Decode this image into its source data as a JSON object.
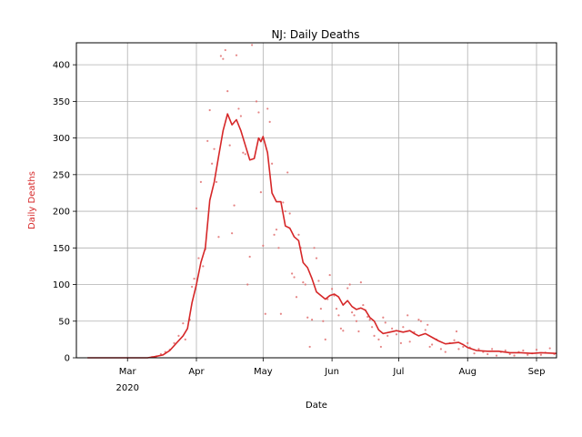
{
  "chart_data": {
    "type": "line",
    "title": "NJ: Daily Deaths",
    "xlabel": "Date",
    "ylabel": "Daily Deaths",
    "grid": true,
    "legend": "none",
    "xlim": [
      "2020-02-07",
      "2020-09-10"
    ],
    "ylim": [
      0,
      430
    ],
    "x_ticks": [
      {
        "date": "2020-03-01",
        "label": "Mar",
        "sublabel": "2020"
      },
      {
        "date": "2020-04-01",
        "label": "Apr",
        "sublabel": ""
      },
      {
        "date": "2020-05-01",
        "label": "May",
        "sublabel": ""
      },
      {
        "date": "2020-06-01",
        "label": "Jun",
        "sublabel": ""
      },
      {
        "date": "2020-07-01",
        "label": "Jul",
        "sublabel": ""
      },
      {
        "date": "2020-08-01",
        "label": "Aug",
        "sublabel": ""
      },
      {
        "date": "2020-09-01",
        "label": "Sep",
        "sublabel": ""
      }
    ],
    "y_ticks": [
      0,
      50,
      100,
      150,
      200,
      250,
      300,
      350,
      400
    ],
    "colors": {
      "line": "#d62728",
      "points": "#e07070",
      "ylabel": "#d62728",
      "grid": "#b0b0b0"
    },
    "series": [
      {
        "kind": "line",
        "data": [
          [
            "2020-02-12",
            0
          ],
          [
            "2020-02-28",
            0
          ],
          [
            "2020-03-10",
            0
          ],
          [
            "2020-03-14",
            2
          ],
          [
            "2020-03-17",
            4
          ],
          [
            "2020-03-20",
            10
          ],
          [
            "2020-03-23",
            20
          ],
          [
            "2020-03-26",
            30
          ],
          [
            "2020-03-28",
            40
          ],
          [
            "2020-03-30",
            75
          ],
          [
            "2020-04-01",
            100
          ],
          [
            "2020-04-03",
            130
          ],
          [
            "2020-04-05",
            150
          ],
          [
            "2020-04-07",
            215
          ],
          [
            "2020-04-09",
            240
          ],
          [
            "2020-04-11",
            275
          ],
          [
            "2020-04-13",
            310
          ],
          [
            "2020-04-15",
            333
          ],
          [
            "2020-04-17",
            318
          ],
          [
            "2020-04-19",
            325
          ],
          [
            "2020-04-21",
            310
          ],
          [
            "2020-04-23",
            290
          ],
          [
            "2020-04-25",
            270
          ],
          [
            "2020-04-27",
            272
          ],
          [
            "2020-04-29",
            300
          ],
          [
            "2020-04-30",
            295
          ],
          [
            "2020-05-01",
            302
          ],
          [
            "2020-05-03",
            280
          ],
          [
            "2020-05-05",
            225
          ],
          [
            "2020-05-07",
            213
          ],
          [
            "2020-05-09",
            213
          ],
          [
            "2020-05-11",
            180
          ],
          [
            "2020-05-13",
            177
          ],
          [
            "2020-05-15",
            165
          ],
          [
            "2020-05-17",
            160
          ],
          [
            "2020-05-19",
            130
          ],
          [
            "2020-05-21",
            123
          ],
          [
            "2020-05-23",
            108
          ],
          [
            "2020-05-25",
            90
          ],
          [
            "2020-05-27",
            85
          ],
          [
            "2020-05-29",
            80
          ],
          [
            "2020-05-31",
            85
          ],
          [
            "2020-06-02",
            87
          ],
          [
            "2020-06-04",
            83
          ],
          [
            "2020-06-06",
            72
          ],
          [
            "2020-06-08",
            78
          ],
          [
            "2020-06-10",
            70
          ],
          [
            "2020-06-12",
            66
          ],
          [
            "2020-06-14",
            68
          ],
          [
            "2020-06-16",
            65
          ],
          [
            "2020-06-18",
            55
          ],
          [
            "2020-06-20",
            50
          ],
          [
            "2020-06-22",
            38
          ],
          [
            "2020-06-24",
            33
          ],
          [
            "2020-06-27",
            35
          ],
          [
            "2020-06-30",
            37
          ],
          [
            "2020-07-03",
            35
          ],
          [
            "2020-07-06",
            37
          ],
          [
            "2020-07-08",
            33
          ],
          [
            "2020-07-10",
            30
          ],
          [
            "2020-07-13",
            33
          ],
          [
            "2020-07-16",
            28
          ],
          [
            "2020-07-19",
            23
          ],
          [
            "2020-07-22",
            19
          ],
          [
            "2020-07-25",
            20
          ],
          [
            "2020-07-28",
            21
          ],
          [
            "2020-07-30",
            18
          ],
          [
            "2020-08-01",
            14
          ],
          [
            "2020-08-05",
            10
          ],
          [
            "2020-08-10",
            9
          ],
          [
            "2020-08-15",
            9
          ],
          [
            "2020-08-20",
            7
          ],
          [
            "2020-08-25",
            7
          ],
          [
            "2020-08-30",
            6
          ],
          [
            "2020-09-03",
            7
          ],
          [
            "2020-09-10",
            6
          ]
        ]
      },
      {
        "kind": "scatter",
        "data": [
          [
            "2020-03-12",
            1
          ],
          [
            "2020-03-14",
            2
          ],
          [
            "2020-03-16",
            5
          ],
          [
            "2020-03-18",
            8
          ],
          [
            "2020-03-20",
            11
          ],
          [
            "2020-03-22",
            20
          ],
          [
            "2020-03-24",
            30
          ],
          [
            "2020-03-26",
            47
          ],
          [
            "2020-03-27",
            25
          ],
          [
            "2020-03-29",
            52
          ],
          [
            "2020-03-30",
            97
          ],
          [
            "2020-03-31",
            108
          ],
          [
            "2020-04-01",
            204
          ],
          [
            "2020-04-02",
            136
          ],
          [
            "2020-04-03",
            240
          ],
          [
            "2020-04-04",
            125
          ],
          [
            "2020-04-05",
            148
          ],
          [
            "2020-04-06",
            296
          ],
          [
            "2020-04-07",
            338
          ],
          [
            "2020-04-08",
            265
          ],
          [
            "2020-04-09",
            285
          ],
          [
            "2020-04-10",
            240
          ],
          [
            "2020-04-11",
            165
          ],
          [
            "2020-04-12",
            412
          ],
          [
            "2020-04-13",
            408
          ],
          [
            "2020-04-14",
            420
          ],
          [
            "2020-04-15",
            364
          ],
          [
            "2020-04-16",
            290
          ],
          [
            "2020-04-17",
            170
          ],
          [
            "2020-04-18",
            208
          ],
          [
            "2020-04-19",
            413
          ],
          [
            "2020-04-20",
            340
          ],
          [
            "2020-04-21",
            330
          ],
          [
            "2020-04-22",
            280
          ],
          [
            "2020-04-23",
            278
          ],
          [
            "2020-04-24",
            100
          ],
          [
            "2020-04-25",
            138
          ],
          [
            "2020-04-26",
            427
          ],
          [
            "2020-04-28",
            350
          ],
          [
            "2020-04-29",
            335
          ],
          [
            "2020-04-30",
            226
          ],
          [
            "2020-05-01",
            153
          ],
          [
            "2020-05-02",
            60
          ],
          [
            "2020-05-03",
            340
          ],
          [
            "2020-05-04",
            322
          ],
          [
            "2020-05-05",
            265
          ],
          [
            "2020-05-06",
            168
          ],
          [
            "2020-05-07",
            175
          ],
          [
            "2020-05-08",
            150
          ],
          [
            "2020-05-09",
            60
          ],
          [
            "2020-05-10",
            212
          ],
          [
            "2020-05-11",
            200
          ],
          [
            "2020-05-12",
            253
          ],
          [
            "2020-05-13",
            197
          ],
          [
            "2020-05-14",
            115
          ],
          [
            "2020-05-15",
            110
          ],
          [
            "2020-05-16",
            83
          ],
          [
            "2020-05-17",
            168
          ],
          [
            "2020-05-18",
            150
          ],
          [
            "2020-05-19",
            103
          ],
          [
            "2020-05-20",
            100
          ],
          [
            "2020-05-21",
            55
          ],
          [
            "2020-05-22",
            15
          ],
          [
            "2020-05-23",
            52
          ],
          [
            "2020-05-24",
            150
          ],
          [
            "2020-05-25",
            136
          ],
          [
            "2020-05-26",
            105
          ],
          [
            "2020-05-27",
            67
          ],
          [
            "2020-05-28",
            50
          ],
          [
            "2020-05-29",
            25
          ],
          [
            "2020-05-30",
            80
          ],
          [
            "2020-05-31",
            113
          ],
          [
            "2020-06-01",
            94
          ],
          [
            "2020-06-02",
            85
          ],
          [
            "2020-06-03",
            67
          ],
          [
            "2020-06-04",
            58
          ],
          [
            "2020-06-05",
            40
          ],
          [
            "2020-06-06",
            37
          ],
          [
            "2020-06-08",
            95
          ],
          [
            "2020-06-09",
            100
          ],
          [
            "2020-06-10",
            62
          ],
          [
            "2020-06-11",
            58
          ],
          [
            "2020-06-12",
            50
          ],
          [
            "2020-06-13",
            36
          ],
          [
            "2020-06-14",
            103
          ],
          [
            "2020-06-15",
            72
          ],
          [
            "2020-06-16",
            65
          ],
          [
            "2020-06-17",
            56
          ],
          [
            "2020-06-18",
            52
          ],
          [
            "2020-06-19",
            42
          ],
          [
            "2020-06-20",
            30
          ],
          [
            "2020-06-22",
            25
          ],
          [
            "2020-06-23",
            15
          ],
          [
            "2020-06-24",
            55
          ],
          [
            "2020-06-25",
            48
          ],
          [
            "2020-06-26",
            30
          ],
          [
            "2020-06-28",
            40
          ],
          [
            "2020-06-30",
            32
          ],
          [
            "2020-07-02",
            20
          ],
          [
            "2020-07-03",
            42
          ],
          [
            "2020-07-05",
            58
          ],
          [
            "2020-07-06",
            22
          ],
          [
            "2020-07-08",
            35
          ],
          [
            "2020-07-10",
            52
          ],
          [
            "2020-07-11",
            50
          ],
          [
            "2020-07-13",
            38
          ],
          [
            "2020-07-14",
            45
          ],
          [
            "2020-07-15",
            15
          ],
          [
            "2020-07-16",
            18
          ],
          [
            "2020-07-18",
            25
          ],
          [
            "2020-07-20",
            12
          ],
          [
            "2020-07-22",
            8
          ],
          [
            "2020-07-24",
            20
          ],
          [
            "2020-07-26",
            24
          ],
          [
            "2020-07-27",
            36
          ],
          [
            "2020-07-28",
            12
          ],
          [
            "2020-07-30",
            15
          ],
          [
            "2020-08-01",
            20
          ],
          [
            "2020-08-02",
            14
          ],
          [
            "2020-08-04",
            6
          ],
          [
            "2020-08-06",
            12
          ],
          [
            "2020-08-08",
            8
          ],
          [
            "2020-08-10",
            5
          ],
          [
            "2020-08-12",
            12
          ],
          [
            "2020-08-14",
            3
          ],
          [
            "2020-08-16",
            8
          ],
          [
            "2020-08-18",
            10
          ],
          [
            "2020-08-20",
            5
          ],
          [
            "2020-08-22",
            3
          ],
          [
            "2020-08-24",
            8
          ],
          [
            "2020-08-26",
            10
          ],
          [
            "2020-08-28",
            4
          ],
          [
            "2020-08-30",
            6
          ],
          [
            "2020-09-01",
            11
          ],
          [
            "2020-09-03",
            4
          ],
          [
            "2020-09-05",
            7
          ],
          [
            "2020-09-07",
            13
          ],
          [
            "2020-09-09",
            5
          ]
        ]
      }
    ]
  }
}
